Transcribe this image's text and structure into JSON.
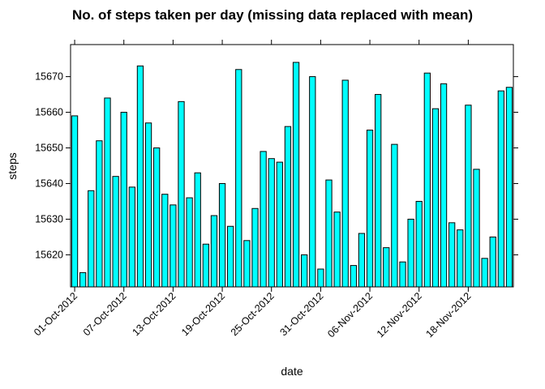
{
  "chart_data": {
    "type": "bar",
    "title": "No. of steps taken per day (missing data replaced with mean)",
    "xlabel": "date",
    "ylabel": "steps",
    "ylim": [
      15611,
      15679
    ],
    "yticks": [
      15620,
      15630,
      15640,
      15650,
      15660,
      15670
    ],
    "x_tick_labels": [
      "01-Oct-2012",
      "07-Oct-2012",
      "13-Oct-2012",
      "19-Oct-2012",
      "25-Oct-2012",
      "31-Oct-2012",
      "06-Nov-2012",
      "12-Nov-2012",
      "18-Nov-2012"
    ],
    "x_tick_every": 6,
    "bar_color": "#00ffff",
    "values": [
      15659,
      15615,
      15638,
      15652,
      15664,
      15642,
      15660,
      15639,
      15673,
      15657,
      15650,
      15637,
      15634,
      15663,
      15636,
      15643,
      15623,
      15631,
      15640,
      15628,
      15672,
      15624,
      15633,
      15649,
      15647,
      15646,
      15656,
      15674,
      15620,
      15670,
      15616,
      15641,
      15632,
      15669,
      15617,
      15626,
      15655,
      15665,
      15622,
      15651,
      15618,
      15630,
      15635,
      15671,
      15661,
      15668,
      15629,
      15627,
      15662,
      15644,
      15619,
      15625,
      15666,
      15667
    ]
  }
}
